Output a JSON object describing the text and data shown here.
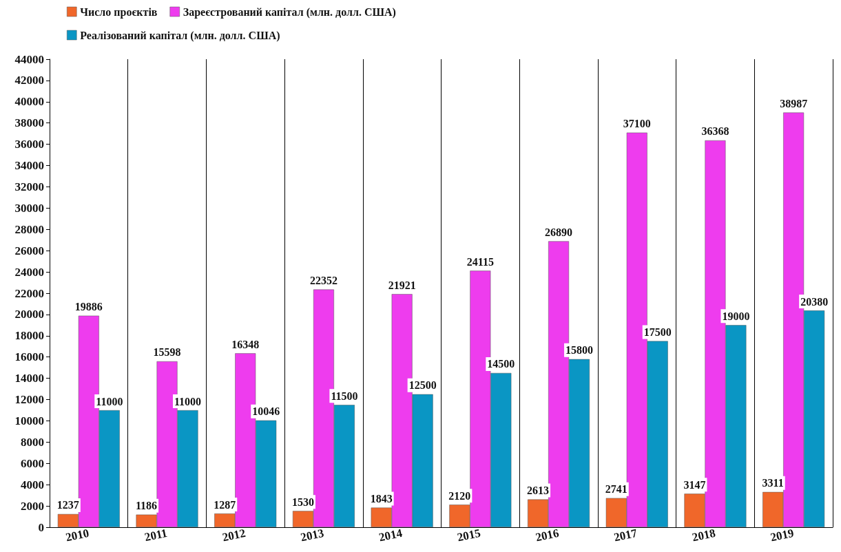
{
  "chart_data": {
    "type": "bar",
    "categories": [
      "2010",
      "2011",
      "2012",
      "2013",
      "2014",
      "2015",
      "2016",
      "2017",
      "2018",
      "2019"
    ],
    "series": [
      {
        "name": "Число проєктів",
        "color": "#f0672a",
        "values": [
          1237,
          1186,
          1287,
          1530,
          1843,
          2120,
          2613,
          2741,
          3147,
          3311
        ]
      },
      {
        "name": "Зареєстрований капітал (млн. долл. США)",
        "color": "#ee3cee",
        "values": [
          19886,
          15598,
          16348,
          22352,
          21921,
          24115,
          26890,
          37100,
          36368,
          38987
        ]
      },
      {
        "name": "Реалізований капітал (млн. долл. США)",
        "color": "#0a96c4",
        "values": [
          11000,
          11000,
          10046,
          11500,
          12500,
          14500,
          15800,
          17500,
          19000,
          20380
        ]
      }
    ],
    "ylim": [
      0,
      44000
    ],
    "yticks": [
      0,
      2000,
      4000,
      6000,
      8000,
      10000,
      12000,
      14000,
      16000,
      18000,
      20000,
      22000,
      24000,
      26000,
      28000,
      30000,
      32000,
      34000,
      36000,
      38000,
      40000,
      42000,
      44000
    ],
    "grid": "x",
    "legend": "top left",
    "data_labels": true
  }
}
